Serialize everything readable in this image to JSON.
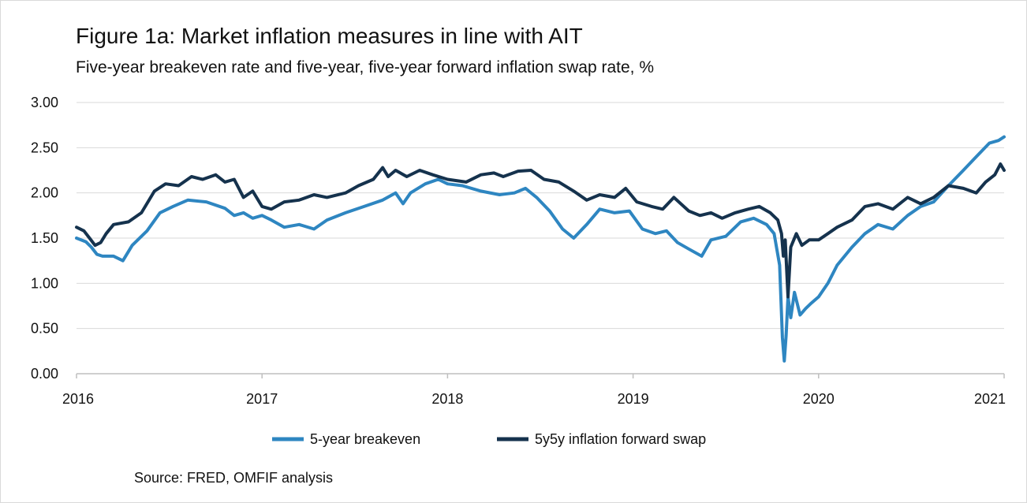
{
  "header": {
    "title": "Figure 1a: Market inflation measures in line with AIT",
    "subtitle": "Five-year breakeven rate and five-year, five-year forward inflation swap rate, %"
  },
  "footer": {
    "source": "Source: FRED, OMFIF analysis"
  },
  "chart_data": {
    "type": "line",
    "title": "Figure 1a: Market inflation measures in line with AIT",
    "subtitle": "Five-year breakeven rate and five-year, five-year forward inflation swap rate, %",
    "xlabel": "",
    "ylabel": "",
    "xlim": [
      2016,
      2021
    ],
    "ylim": [
      0,
      3
    ],
    "yticks": [
      "0.00",
      "0.50",
      "1.00",
      "1.50",
      "2.00",
      "2.50",
      "3.00"
    ],
    "xticks": [
      "2016",
      "2017",
      "2018",
      "2019",
      "2020",
      "2021"
    ],
    "grid": true,
    "legend_position": "bottom",
    "series": [
      {
        "name": "5-year breakeven",
        "color": "#2e86c1",
        "x": [
          2016.0,
          2016.05,
          2016.08,
          2016.11,
          2016.14,
          2016.2,
          2016.25,
          2016.3,
          2016.38,
          2016.45,
          2016.52,
          2016.6,
          2016.7,
          2016.8,
          2016.85,
          2016.9,
          2016.95,
          2017.0,
          2017.05,
          2017.12,
          2017.2,
          2017.28,
          2017.35,
          2017.45,
          2017.55,
          2017.65,
          2017.72,
          2017.76,
          2017.8,
          2017.88,
          2017.95,
          2018.0,
          2018.08,
          2018.18,
          2018.28,
          2018.36,
          2018.42,
          2018.48,
          2018.55,
          2018.62,
          2018.68,
          2018.75,
          2018.82,
          2018.9,
          2018.98,
          2019.05,
          2019.12,
          2019.18,
          2019.24,
          2019.3,
          2019.37,
          2019.42,
          2019.5,
          2019.58,
          2019.65,
          2019.72,
          2019.76,
          2019.79,
          2019.805,
          2019.815,
          2019.825,
          2019.835,
          2019.85,
          2019.87,
          2019.9,
          2019.93,
          2019.96,
          2020.0,
          2020.05,
          2020.1,
          2020.18,
          2020.25,
          2020.32,
          2020.4,
          2020.48,
          2020.55,
          2020.62,
          2020.7,
          2020.78,
          2020.85,
          2020.92,
          2020.97,
          2021.0
        ],
        "values": [
          1.5,
          1.46,
          1.4,
          1.32,
          1.3,
          1.3,
          1.25,
          1.42,
          1.58,
          1.78,
          1.85,
          1.92,
          1.9,
          1.83,
          1.75,
          1.78,
          1.72,
          1.75,
          1.7,
          1.62,
          1.65,
          1.6,
          1.7,
          1.78,
          1.85,
          1.92,
          2.0,
          1.88,
          2.0,
          2.1,
          2.15,
          2.1,
          2.08,
          2.02,
          1.98,
          2.0,
          2.05,
          1.95,
          1.8,
          1.6,
          1.5,
          1.65,
          1.82,
          1.78,
          1.8,
          1.6,
          1.55,
          1.58,
          1.45,
          1.38,
          1.3,
          1.48,
          1.52,
          1.68,
          1.72,
          1.65,
          1.55,
          1.2,
          0.4,
          0.14,
          0.42,
          0.85,
          0.62,
          0.9,
          0.65,
          0.72,
          0.78,
          0.85,
          1.0,
          1.2,
          1.4,
          1.55,
          1.65,
          1.6,
          1.75,
          1.85,
          1.9,
          2.08,
          2.25,
          2.4,
          2.55,
          2.58,
          2.62
        ]
      },
      {
        "name": "5y5y inflation forward swap",
        "color": "#15324d",
        "x": [
          2016.0,
          2016.04,
          2016.07,
          2016.1,
          2016.13,
          2016.16,
          2016.2,
          2016.28,
          2016.35,
          2016.42,
          2016.48,
          2016.55,
          2016.62,
          2016.68,
          2016.75,
          2016.8,
          2016.85,
          2016.9,
          2016.95,
          2017.0,
          2017.05,
          2017.12,
          2017.2,
          2017.28,
          2017.35,
          2017.45,
          2017.52,
          2017.6,
          2017.65,
          2017.68,
          2017.72,
          2017.78,
          2017.85,
          2017.92,
          2018.0,
          2018.1,
          2018.18,
          2018.25,
          2018.3,
          2018.38,
          2018.45,
          2018.52,
          2018.6,
          2018.68,
          2018.75,
          2018.82,
          2018.9,
          2018.96,
          2019.02,
          2019.1,
          2019.16,
          2019.22,
          2019.3,
          2019.36,
          2019.42,
          2019.48,
          2019.55,
          2019.62,
          2019.68,
          2019.74,
          2019.78,
          2019.8,
          2019.81,
          2019.82,
          2019.835,
          2019.85,
          2019.88,
          2019.91,
          2019.95,
          2020.0,
          2020.05,
          2020.1,
          2020.18,
          2020.25,
          2020.32,
          2020.4,
          2020.48,
          2020.55,
          2020.62,
          2020.7,
          2020.78,
          2020.85,
          2020.9,
          2020.95,
          2020.98,
          2021.0
        ],
        "values": [
          1.62,
          1.58,
          1.5,
          1.42,
          1.45,
          1.55,
          1.65,
          1.68,
          1.78,
          2.02,
          2.1,
          2.08,
          2.18,
          2.15,
          2.2,
          2.12,
          2.15,
          1.95,
          2.02,
          1.85,
          1.82,
          1.9,
          1.92,
          1.98,
          1.95,
          2.0,
          2.08,
          2.15,
          2.28,
          2.18,
          2.25,
          2.18,
          2.25,
          2.2,
          2.15,
          2.12,
          2.2,
          2.22,
          2.18,
          2.24,
          2.25,
          2.15,
          2.12,
          2.02,
          1.92,
          1.98,
          1.95,
          2.05,
          1.9,
          1.85,
          1.82,
          1.95,
          1.8,
          1.75,
          1.78,
          1.72,
          1.78,
          1.82,
          1.85,
          1.78,
          1.7,
          1.55,
          1.3,
          1.48,
          0.85,
          1.4,
          1.55,
          1.42,
          1.48,
          1.48,
          1.55,
          1.62,
          1.7,
          1.85,
          1.88,
          1.82,
          1.95,
          1.88,
          1.95,
          2.08,
          2.05,
          2.0,
          2.12,
          2.2,
          2.32,
          2.25
        ]
      }
    ]
  }
}
